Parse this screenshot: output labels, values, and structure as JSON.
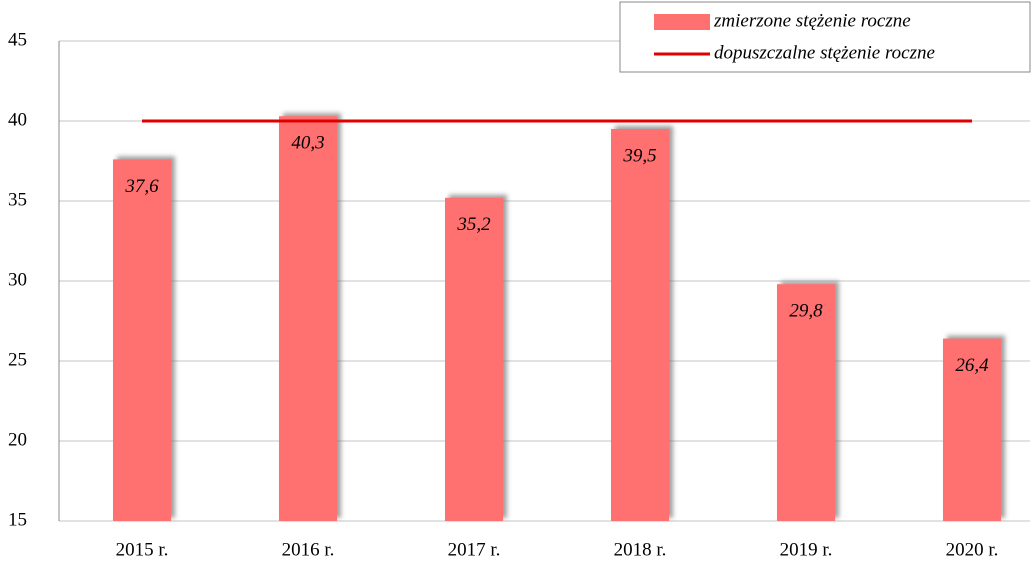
{
  "chart_data": {
    "type": "bar",
    "categories": [
      "2015 r.",
      "2016 r.",
      "2017 r.",
      "2018 r.",
      "2019 r.",
      "2020 r."
    ],
    "series": [
      {
        "name": "zmierzone stężenie roczne",
        "type": "bar",
        "color": "#ff7070",
        "values": [
          37.6,
          40.3,
          35.2,
          39.5,
          29.8,
          26.4
        ],
        "value_labels": [
          "37,6",
          "40,3",
          "35,2",
          "39,5",
          "29,8",
          "26,4"
        ]
      },
      {
        "name": "dopuszczalne stężenie roczne",
        "type": "line",
        "color": "#e00000",
        "values": [
          40,
          40,
          40,
          40,
          40,
          40
        ]
      }
    ],
    "ylim": [
      15,
      45
    ],
    "yticks": [
      15,
      20,
      25,
      30,
      35,
      40,
      45
    ],
    "grid": true,
    "legend": "top-right"
  }
}
